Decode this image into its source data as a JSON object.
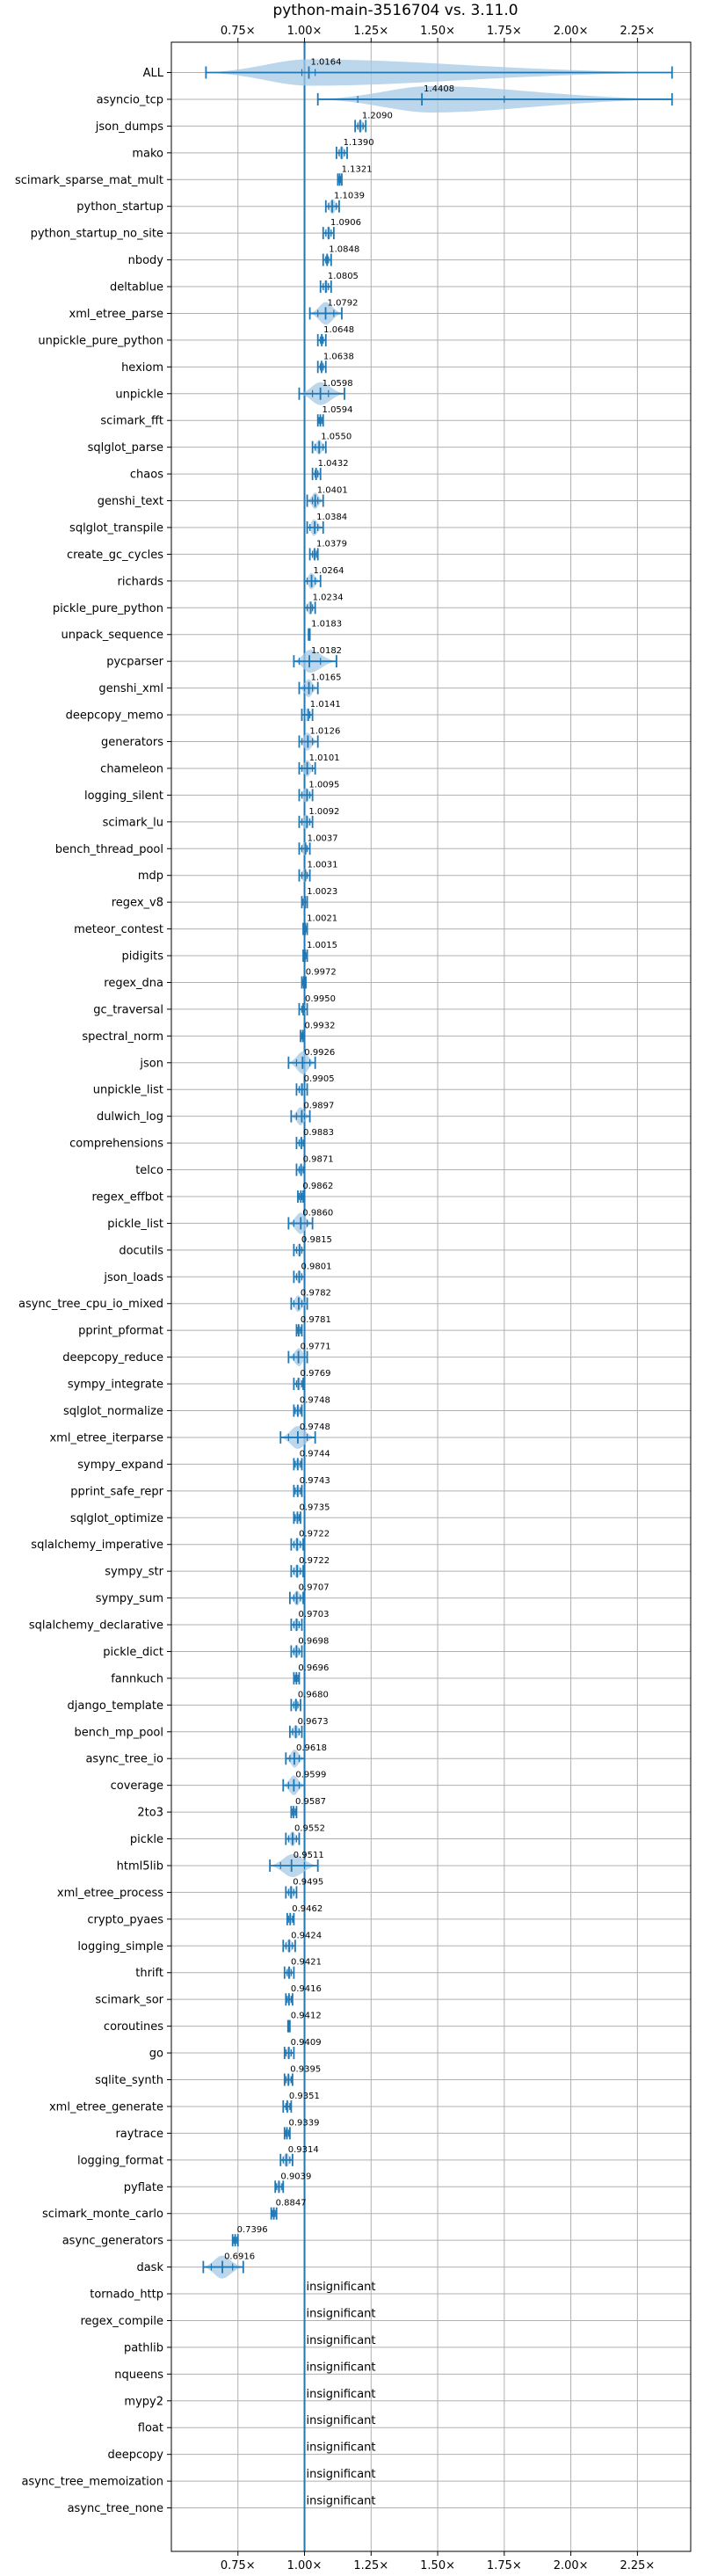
{
  "chart_data": {
    "type": "violin",
    "title": "python-main-3516704 vs. 3.11.0",
    "xlim": [
      0.5,
      2.45
    ],
    "x_ticks": [
      0.75,
      1.0,
      1.25,
      1.5,
      1.75,
      2.0,
      2.25
    ],
    "x_tick_labels": [
      "0.75×",
      "1.00×",
      "1.25×",
      "1.50×",
      "1.75×",
      "2.00×",
      "2.25×"
    ],
    "reference_line": 1.0,
    "grid": true,
    "accent_color": "#1f77b4",
    "violin_color": "#a6c8e4",
    "benchmarks": [
      {
        "name": "ALL",
        "value": 1.0164,
        "label": "1.0164",
        "min": 0.63,
        "max": 2.38,
        "q1": 0.99,
        "q3": 1.04
      },
      {
        "name": "asyncio_tcp",
        "value": 1.4408,
        "label": "1.4408",
        "min": 1.05,
        "max": 2.38,
        "q1": 1.2,
        "q3": 1.75
      },
      {
        "name": "json_dumps",
        "value": 1.209,
        "label": "1.2090",
        "min": 1.19,
        "max": 1.23,
        "q1": 1.2,
        "q3": 1.22
      },
      {
        "name": "mako",
        "value": 1.139,
        "label": "1.1390",
        "min": 1.12,
        "max": 1.16,
        "q1": 1.13,
        "q3": 1.15
      },
      {
        "name": "scimark_sparse_mat_mult",
        "value": 1.1321,
        "label": "1.1321",
        "min": 1.125,
        "max": 1.14,
        "q1": 1.13,
        "q3": 1.135
      },
      {
        "name": "python_startup",
        "value": 1.1039,
        "label": "1.1039",
        "min": 1.08,
        "max": 1.13,
        "q1": 1.09,
        "q3": 1.12
      },
      {
        "name": "python_startup_no_site",
        "value": 1.0906,
        "label": "1.0906",
        "min": 1.07,
        "max": 1.11,
        "q1": 1.08,
        "q3": 1.1
      },
      {
        "name": "nbody",
        "value": 1.0848,
        "label": "1.0848",
        "min": 1.07,
        "max": 1.1,
        "q1": 1.08,
        "q3": 1.09
      },
      {
        "name": "deltablue",
        "value": 1.0805,
        "label": "1.0805",
        "min": 1.06,
        "max": 1.1,
        "q1": 1.07,
        "q3": 1.09
      },
      {
        "name": "xml_etree_parse",
        "value": 1.0792,
        "label": "1.0792",
        "min": 1.02,
        "max": 1.14,
        "q1": 1.05,
        "q3": 1.11
      },
      {
        "name": "unpickle_pure_python",
        "value": 1.0648,
        "label": "1.0648",
        "min": 1.05,
        "max": 1.08,
        "q1": 1.06,
        "q3": 1.07
      },
      {
        "name": "hexiom",
        "value": 1.0638,
        "label": "1.0638",
        "min": 1.05,
        "max": 1.08,
        "q1": 1.06,
        "q3": 1.07
      },
      {
        "name": "unpickle",
        "value": 1.0598,
        "label": "1.0598",
        "min": 0.98,
        "max": 1.15,
        "q1": 1.03,
        "q3": 1.09
      },
      {
        "name": "scimark_fft",
        "value": 1.0594,
        "label": "1.0594",
        "min": 1.05,
        "max": 1.07,
        "q1": 1.055,
        "q3": 1.065
      },
      {
        "name": "sqlglot_parse",
        "value": 1.055,
        "label": "1.0550",
        "min": 1.03,
        "max": 1.08,
        "q1": 1.04,
        "q3": 1.07
      },
      {
        "name": "chaos",
        "value": 1.0432,
        "label": "1.0432",
        "min": 1.03,
        "max": 1.06,
        "q1": 1.04,
        "q3": 1.05
      },
      {
        "name": "genshi_text",
        "value": 1.0401,
        "label": "1.0401",
        "min": 1.01,
        "max": 1.07,
        "q1": 1.03,
        "q3": 1.05
      },
      {
        "name": "sqlglot_transpile",
        "value": 1.0384,
        "label": "1.0384",
        "min": 1.01,
        "max": 1.07,
        "q1": 1.02,
        "q3": 1.05
      },
      {
        "name": "create_gc_cycles",
        "value": 1.0379,
        "label": "1.0379",
        "min": 1.02,
        "max": 1.05,
        "q1": 1.03,
        "q3": 1.045
      },
      {
        "name": "richards",
        "value": 1.0264,
        "label": "1.0264",
        "min": 1.0,
        "max": 1.06,
        "q1": 1.01,
        "q3": 1.04
      },
      {
        "name": "pickle_pure_python",
        "value": 1.0234,
        "label": "1.0234",
        "min": 1.0,
        "max": 1.04,
        "q1": 1.01,
        "q3": 1.03
      },
      {
        "name": "unpack_sequence",
        "value": 1.0183,
        "label": "1.0183",
        "min": 1.015,
        "max": 1.02,
        "q1": 1.016,
        "q3": 1.02
      },
      {
        "name": "pycparser",
        "value": 1.0182,
        "label": "1.0182",
        "min": 0.96,
        "max": 1.12,
        "q1": 0.98,
        "q3": 1.06
      },
      {
        "name": "genshi_xml",
        "value": 1.0165,
        "label": "1.0165",
        "min": 0.98,
        "max": 1.05,
        "q1": 1.0,
        "q3": 1.03
      },
      {
        "name": "deepcopy_memo",
        "value": 1.0141,
        "label": "1.0141",
        "min": 0.99,
        "max": 1.03,
        "q1": 1.0,
        "q3": 1.02
      },
      {
        "name": "generators",
        "value": 1.0126,
        "label": "1.0126",
        "min": 0.98,
        "max": 1.05,
        "q1": 0.99,
        "q3": 1.03
      },
      {
        "name": "chameleon",
        "value": 1.0101,
        "label": "1.0101",
        "min": 0.98,
        "max": 1.04,
        "q1": 0.99,
        "q3": 1.03
      },
      {
        "name": "logging_silent",
        "value": 1.0095,
        "label": "1.0095",
        "min": 0.98,
        "max": 1.03,
        "q1": 0.99,
        "q3": 1.02
      },
      {
        "name": "scimark_lu",
        "value": 1.0092,
        "label": "1.0092",
        "min": 0.98,
        "max": 1.03,
        "q1": 0.99,
        "q3": 1.02
      },
      {
        "name": "bench_thread_pool",
        "value": 1.0037,
        "label": "1.0037",
        "min": 0.98,
        "max": 1.02,
        "q1": 0.99,
        "q3": 1.01
      },
      {
        "name": "mdp",
        "value": 1.0031,
        "label": "1.0031",
        "min": 0.98,
        "max": 1.02,
        "q1": 0.99,
        "q3": 1.01
      },
      {
        "name": "regex_v8",
        "value": 1.0023,
        "label": "1.0023",
        "min": 0.99,
        "max": 1.01,
        "q1": 0.995,
        "q3": 1.01
      },
      {
        "name": "meteor_contest",
        "value": 1.0021,
        "label": "1.0021",
        "min": 0.995,
        "max": 1.01,
        "q1": 1.0,
        "q3": 1.005
      },
      {
        "name": "pidigits",
        "value": 1.0015,
        "label": "1.0015",
        "min": 0.995,
        "max": 1.01,
        "q1": 1.0,
        "q3": 1.005
      },
      {
        "name": "regex_dna",
        "value": 0.9972,
        "label": "0.9972",
        "min": 0.99,
        "max": 1.005,
        "q1": 0.995,
        "q3": 1.0
      },
      {
        "name": "gc_traversal",
        "value": 0.995,
        "label": "0.9950",
        "min": 0.98,
        "max": 1.01,
        "q1": 0.99,
        "q3": 1.0
      },
      {
        "name": "spectral_norm",
        "value": 0.9932,
        "label": "0.9932",
        "min": 0.985,
        "max": 1.0,
        "q1": 0.99,
        "q3": 0.997
      },
      {
        "name": "json",
        "value": 0.9926,
        "label": "0.9926",
        "min": 0.94,
        "max": 1.04,
        "q1": 0.97,
        "q3": 1.02
      },
      {
        "name": "unpickle_list",
        "value": 0.9905,
        "label": "0.9905",
        "min": 0.97,
        "max": 1.01,
        "q1": 0.98,
        "q3": 1.0
      },
      {
        "name": "dulwich_log",
        "value": 0.9897,
        "label": "0.9897",
        "min": 0.95,
        "max": 1.02,
        "q1": 0.97,
        "q3": 1.0
      },
      {
        "name": "comprehensions",
        "value": 0.9883,
        "label": "0.9883",
        "min": 0.97,
        "max": 1.0,
        "q1": 0.98,
        "q3": 0.995
      },
      {
        "name": "telco",
        "value": 0.9871,
        "label": "0.9871",
        "min": 0.97,
        "max": 1.0,
        "q1": 0.98,
        "q3": 0.995
      },
      {
        "name": "regex_effbot",
        "value": 0.9862,
        "label": "0.9862",
        "min": 0.975,
        "max": 0.995,
        "q1": 0.98,
        "q3": 0.99
      },
      {
        "name": "pickle_list",
        "value": 0.986,
        "label": "0.9860",
        "min": 0.94,
        "max": 1.03,
        "q1": 0.96,
        "q3": 1.01
      },
      {
        "name": "docutils",
        "value": 0.9815,
        "label": "0.9815",
        "min": 0.96,
        "max": 1.0,
        "q1": 0.97,
        "q3": 0.99
      },
      {
        "name": "json_loads",
        "value": 0.9801,
        "label": "0.9801",
        "min": 0.96,
        "max": 1.0,
        "q1": 0.97,
        "q3": 0.99
      },
      {
        "name": "async_tree_cpu_io_mixed",
        "value": 0.9782,
        "label": "0.9782",
        "min": 0.95,
        "max": 1.01,
        "q1": 0.96,
        "q3": 0.99
      },
      {
        "name": "pprint_pformat",
        "value": 0.9781,
        "label": "0.9781",
        "min": 0.97,
        "max": 0.99,
        "q1": 0.975,
        "q3": 0.985
      },
      {
        "name": "deepcopy_reduce",
        "value": 0.9771,
        "label": "0.9771",
        "min": 0.94,
        "max": 1.01,
        "q1": 0.96,
        "q3": 1.0
      },
      {
        "name": "sympy_integrate",
        "value": 0.9769,
        "label": "0.9769",
        "min": 0.96,
        "max": 0.995,
        "q1": 0.97,
        "q3": 0.99
      },
      {
        "name": "sqlglot_normalize",
        "value": 0.9748,
        "label": "0.9748",
        "min": 0.96,
        "max": 0.99,
        "q1": 0.965,
        "q3": 0.985
      },
      {
        "name": "xml_etree_iterparse",
        "value": 0.9748,
        "label": "0.9748",
        "min": 0.91,
        "max": 1.04,
        "q1": 0.94,
        "q3": 1.01
      },
      {
        "name": "sympy_expand",
        "value": 0.9744,
        "label": "0.9744",
        "min": 0.96,
        "max": 0.99,
        "q1": 0.965,
        "q3": 0.985
      },
      {
        "name": "pprint_safe_repr",
        "value": 0.9743,
        "label": "0.9743",
        "min": 0.96,
        "max": 0.99,
        "q1": 0.965,
        "q3": 0.985
      },
      {
        "name": "sqlglot_optimize",
        "value": 0.9735,
        "label": "0.9735",
        "min": 0.96,
        "max": 0.985,
        "q1": 0.965,
        "q3": 0.98
      },
      {
        "name": "sqlalchemy_imperative",
        "value": 0.9722,
        "label": "0.9722",
        "min": 0.95,
        "max": 0.995,
        "q1": 0.96,
        "q3": 0.985
      },
      {
        "name": "sympy_str",
        "value": 0.9722,
        "label": "0.9722",
        "min": 0.95,
        "max": 0.995,
        "q1": 0.96,
        "q3": 0.985
      },
      {
        "name": "sympy_sum",
        "value": 0.9707,
        "label": "0.9707",
        "min": 0.945,
        "max": 0.995,
        "q1": 0.96,
        "q3": 0.985
      },
      {
        "name": "sqlalchemy_declarative",
        "value": 0.9703,
        "label": "0.9703",
        "min": 0.95,
        "max": 0.99,
        "q1": 0.96,
        "q3": 0.98
      },
      {
        "name": "pickle_dict",
        "value": 0.9698,
        "label": "0.9698",
        "min": 0.95,
        "max": 0.99,
        "q1": 0.96,
        "q3": 0.98
      },
      {
        "name": "fannkuch",
        "value": 0.9696,
        "label": "0.9696",
        "min": 0.96,
        "max": 0.98,
        "q1": 0.965,
        "q3": 0.975
      },
      {
        "name": "django_template",
        "value": 0.968,
        "label": "0.9680",
        "min": 0.95,
        "max": 0.985,
        "q1": 0.96,
        "q3": 0.975
      },
      {
        "name": "bench_mp_pool",
        "value": 0.9673,
        "label": "0.9673",
        "min": 0.945,
        "max": 0.99,
        "q1": 0.955,
        "q3": 0.98
      },
      {
        "name": "async_tree_io",
        "value": 0.9618,
        "label": "0.9618",
        "min": 0.93,
        "max": 1.0,
        "q1": 0.945,
        "q3": 0.98
      },
      {
        "name": "coverage",
        "value": 0.9599,
        "label": "0.9599",
        "min": 0.92,
        "max": 1.0,
        "q1": 0.94,
        "q3": 0.98
      },
      {
        "name": "2to3",
        "value": 0.9587,
        "label": "0.9587",
        "min": 0.95,
        "max": 0.97,
        "q1": 0.955,
        "q3": 0.965
      },
      {
        "name": "pickle",
        "value": 0.9552,
        "label": "0.9552",
        "min": 0.93,
        "max": 0.98,
        "q1": 0.94,
        "q3": 0.97
      },
      {
        "name": "html5lib",
        "value": 0.9511,
        "label": "0.9511",
        "min": 0.87,
        "max": 1.05,
        "q1": 0.91,
        "q3": 1.0
      },
      {
        "name": "xml_etree_process",
        "value": 0.9495,
        "label": "0.9495",
        "min": 0.93,
        "max": 0.97,
        "q1": 0.94,
        "q3": 0.96
      },
      {
        "name": "crypto_pyaes",
        "value": 0.9462,
        "label": "0.9462",
        "min": 0.935,
        "max": 0.96,
        "q1": 0.94,
        "q3": 0.955
      },
      {
        "name": "logging_simple",
        "value": 0.9424,
        "label": "0.9424",
        "min": 0.92,
        "max": 0.965,
        "q1": 0.93,
        "q3": 0.955
      },
      {
        "name": "thrift",
        "value": 0.9421,
        "label": "0.9421",
        "min": 0.925,
        "max": 0.96,
        "q1": 0.935,
        "q3": 0.95
      },
      {
        "name": "scimark_sor",
        "value": 0.9416,
        "label": "0.9416",
        "min": 0.93,
        "max": 0.955,
        "q1": 0.935,
        "q3": 0.95
      },
      {
        "name": "coroutines",
        "value": 0.9412,
        "label": "0.9412",
        "min": 0.938,
        "max": 0.945,
        "q1": 0.94,
        "q3": 0.943
      },
      {
        "name": "go",
        "value": 0.9409,
        "label": "0.9409",
        "min": 0.925,
        "max": 0.96,
        "q1": 0.93,
        "q3": 0.95
      },
      {
        "name": "sqlite_synth",
        "value": 0.9395,
        "label": "0.9395",
        "min": 0.925,
        "max": 0.955,
        "q1": 0.93,
        "q3": 0.95
      },
      {
        "name": "xml_etree_generate",
        "value": 0.9351,
        "label": "0.9351",
        "min": 0.92,
        "max": 0.95,
        "q1": 0.93,
        "q3": 0.945
      },
      {
        "name": "raytrace",
        "value": 0.9339,
        "label": "0.9339",
        "min": 0.925,
        "max": 0.945,
        "q1": 0.93,
        "q3": 0.94
      },
      {
        "name": "logging_format",
        "value": 0.9314,
        "label": "0.9314",
        "min": 0.91,
        "max": 0.955,
        "q1": 0.92,
        "q3": 0.945
      },
      {
        "name": "pyflate",
        "value": 0.9039,
        "label": "0.9039",
        "min": 0.89,
        "max": 0.92,
        "q1": 0.895,
        "q3": 0.915
      },
      {
        "name": "scimark_monte_carlo",
        "value": 0.8847,
        "label": "0.8847",
        "min": 0.875,
        "max": 0.895,
        "q1": 0.88,
        "q3": 0.89
      },
      {
        "name": "async_generators",
        "value": 0.7396,
        "label": "0.7396",
        "min": 0.73,
        "max": 0.75,
        "q1": 0.735,
        "q3": 0.745
      },
      {
        "name": "dask",
        "value": 0.6916,
        "label": "0.6916",
        "min": 0.62,
        "max": 0.77,
        "q1": 0.65,
        "q3": 0.73
      },
      {
        "name": "tornado_http",
        "value": null,
        "label": "insignificant"
      },
      {
        "name": "regex_compile",
        "value": null,
        "label": "insignificant"
      },
      {
        "name": "pathlib",
        "value": null,
        "label": "insignificant"
      },
      {
        "name": "nqueens",
        "value": null,
        "label": "insignificant"
      },
      {
        "name": "mypy2",
        "value": null,
        "label": "insignificant"
      },
      {
        "name": "float",
        "value": null,
        "label": "insignificant"
      },
      {
        "name": "deepcopy",
        "value": null,
        "label": "insignificant"
      },
      {
        "name": "async_tree_memoization",
        "value": null,
        "label": "insignificant"
      },
      {
        "name": "async_tree_none",
        "value": null,
        "label": "insignificant"
      }
    ]
  }
}
